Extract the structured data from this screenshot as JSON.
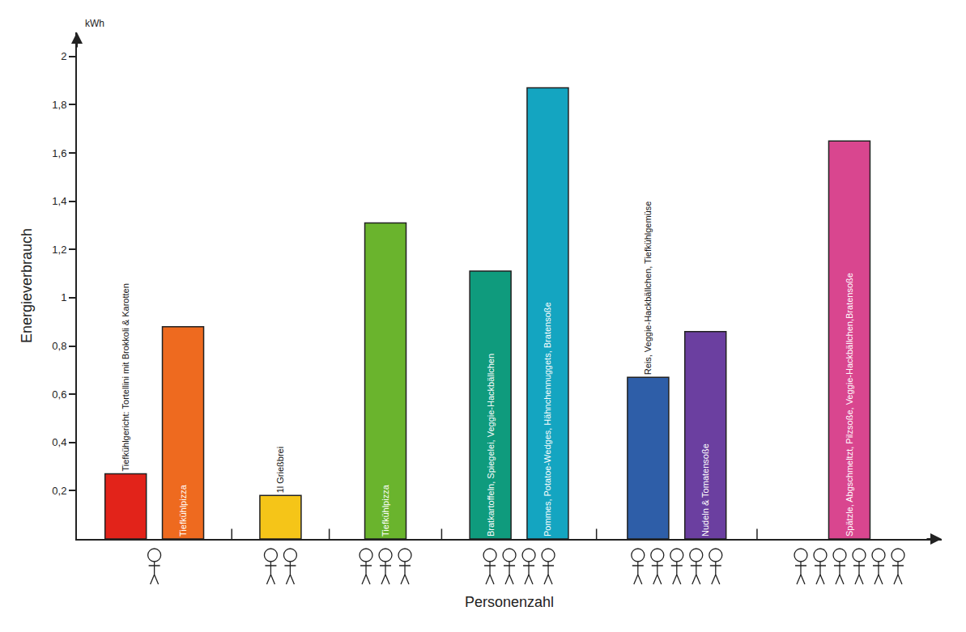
{
  "chart_data": {
    "type": "bar",
    "x_label": "Personenzahl",
    "y_label": "Energieverbrauch",
    "y_unit": "kWh",
    "categories": [
      "Tiefkühlgericht: Tortellini mit Brokkoli & Karotten",
      "Tiefkühlpizza",
      "1l Grießbrei",
      "Tiefkühlpizza",
      "Bratkartoffeln, Spiegelei, Veggie-Hackbällchen",
      "Pommes, Potatoe-Wedges, Hähnchennuggets, Bratensoße",
      "Reis, Veggie-Hackbällchen, Tiefkühlgemüse",
      "Nudeln & Tomatensoße",
      "Spätzle, Abgschmeltzt, Pilzsoße, Veggie-Hackbällchen,Bratensoße"
    ],
    "values": [
      0.27,
      0.88,
      0.18,
      1.31,
      1.11,
      1.87,
      0.67,
      0.86,
      1.65
    ],
    "persons": [
      1,
      1,
      2,
      3,
      4,
      4,
      5,
      5,
      6
    ],
    "colors": [
      "#e2231a",
      "#ee6a1f",
      "#f5c518",
      "#6ab42d",
      "#0f9b7d",
      "#14a5c1",
      "#2e5ea8",
      "#6b3fa0",
      "#d9468f"
    ],
    "ylim": [
      0,
      2.1
    ],
    "yticks": [
      {
        "value": 0.2,
        "label": "0,2"
      },
      {
        "value": 0.4,
        "label": "0,4"
      },
      {
        "value": 0.6,
        "label": "0,6"
      },
      {
        "value": 0.8,
        "label": "0,8"
      },
      1,
      {
        "value": 1.2,
        "label": "1,2"
      },
      {
        "value": 1.4,
        "label": "1,4"
      },
      {
        "value": 1.6,
        "label": "1,6"
      },
      {
        "value": 1.8,
        "label": "1,8"
      },
      2
    ],
    "grid": false,
    "tick_labels": "y"
  }
}
